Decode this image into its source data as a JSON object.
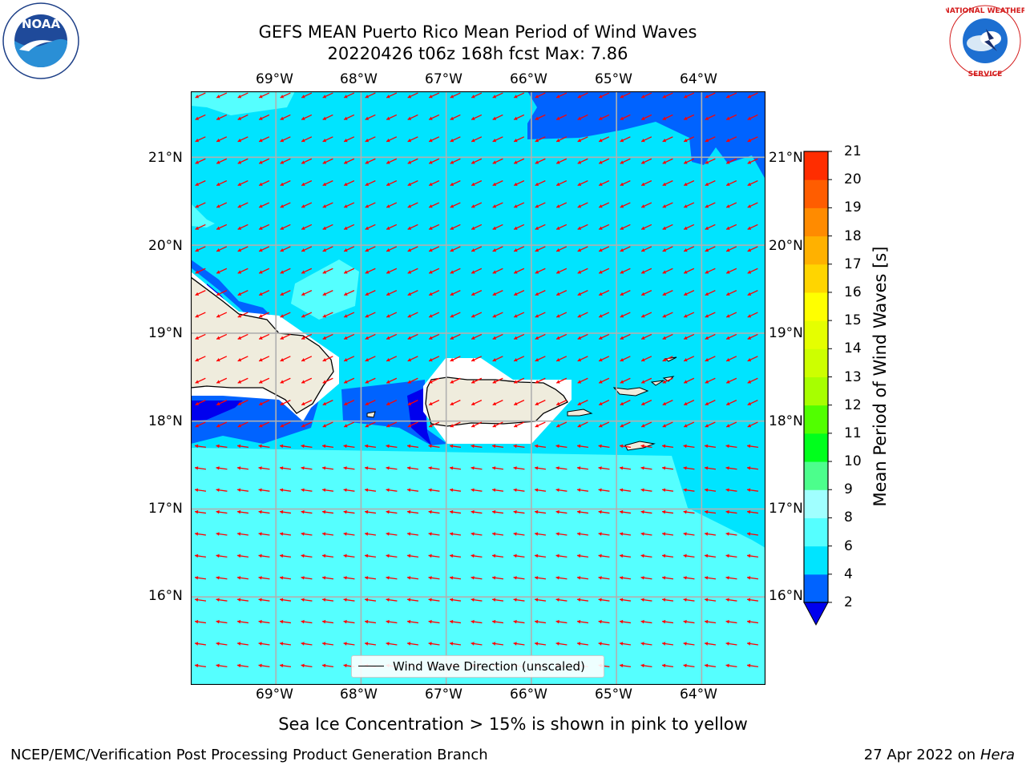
{
  "title": {
    "line1": "GEFS MEAN Puerto Rico Mean Period of Wind Waves",
    "line2": "20220426 t06z 168h fcst   Max: 7.86"
  },
  "axes": {
    "lon_ticks": [
      "69°W",
      "68°W",
      "67°W",
      "66°W",
      "65°W",
      "64°W"
    ],
    "lat_ticks": [
      "21°N",
      "20°N",
      "19°N",
      "18°N",
      "17°N",
      "16°N"
    ],
    "lon_range": [
      -70.0,
      -63.25
    ],
    "lat_range": [
      15.0,
      21.75
    ],
    "grid": true
  },
  "map_features": {
    "land_color": "#efecdd",
    "coastline_color": "#000000",
    "arrow_color": "#ff0000",
    "wave_direction": "from east-northeast toward west-southwest",
    "regions": [
      "Puerto Rico",
      "Hispaniola (east)",
      "Virgin Islands"
    ]
  },
  "legend": {
    "label": "Wind Wave Direction (unscaled)"
  },
  "colorbar": {
    "label": "Mean Period of Wind Waves [s]",
    "ticks": [
      "21",
      "20",
      "19",
      "18",
      "17",
      "16",
      "15",
      "14",
      "13",
      "12",
      "11",
      "10",
      "9",
      "8",
      "6",
      "4",
      "2"
    ],
    "levels": [
      2,
      4,
      6,
      8,
      9,
      10,
      11,
      12,
      13,
      14,
      15,
      16,
      17,
      18,
      19,
      20,
      21
    ],
    "colors": [
      "#0063ff",
      "#00e4ff",
      "#55ffff",
      "#a0ffff",
      "#4cfe8c",
      "#00ff1c",
      "#51ff00",
      "#a7ff00",
      "#cdff00",
      "#e5ff00",
      "#ffff00",
      "#ffd500",
      "#ffb100",
      "#ff8b00",
      "#ff5d00",
      "#ff2d00",
      "#ff0000"
    ],
    "under_color": "#0000ee"
  },
  "chart_data": {
    "type": "heatmap",
    "field": "Mean Period of Wind Waves",
    "units": "s",
    "max": 7.86,
    "forecast_hour": 168,
    "init": "20220426 t06z",
    "dominant_range_s": [
      6,
      8
    ],
    "areas": [
      {
        "area": "open ocean north and south",
        "range_s": [
          6,
          8
        ]
      },
      {
        "area": "far northeast and lee of Hispaniola/Puerto Rico",
        "range_s": [
          2,
          4
        ]
      },
      {
        "area": "tight lee pockets",
        "range_s": [
          0,
          2
        ]
      }
    ]
  },
  "subtitle": "Sea Ice Concentration > 15% is shown in pink to yellow",
  "footer": {
    "left": "NCEP/EMC/Verification Post Processing Product Generation Branch",
    "right_date": "27 Apr 2022 on ",
    "right_host": "Hera"
  },
  "logos": {
    "left": "NOAA",
    "right": "NATIONAL WEATHER SERVICE"
  }
}
